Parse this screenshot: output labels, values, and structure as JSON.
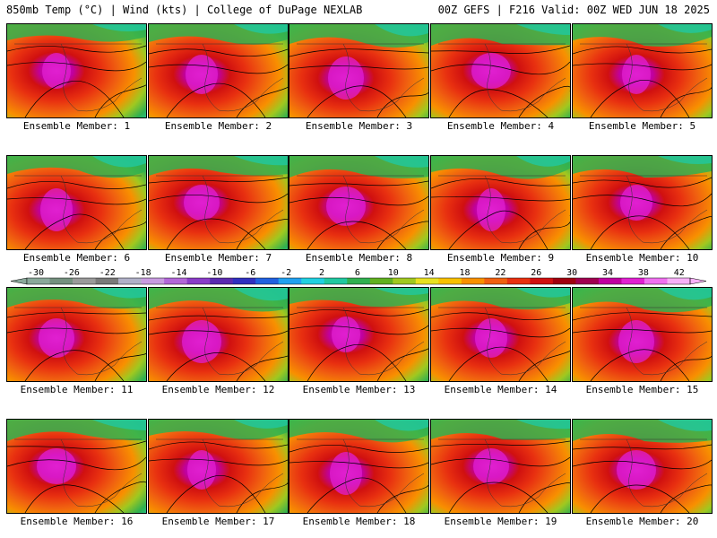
{
  "header": {
    "left": "850mb Temp (°C) | Wind (kts) | College of DuPage NEXLAB",
    "right": "00Z GEFS | F216 Valid: 00Z WED JUN 18 2025"
  },
  "members": [
    {
      "label": "Ensemble Member: 1"
    },
    {
      "label": "Ensemble Member: 2"
    },
    {
      "label": "Ensemble Member: 3"
    },
    {
      "label": "Ensemble Member: 4"
    },
    {
      "label": "Ensemble Member: 5"
    },
    {
      "label": "Ensemble Member: 6"
    },
    {
      "label": "Ensemble Member: 7"
    },
    {
      "label": "Ensemble Member: 8"
    },
    {
      "label": "Ensemble Member: 9"
    },
    {
      "label": "Ensemble Member: 10"
    },
    {
      "label": "Ensemble Member: 11"
    },
    {
      "label": "Ensemble Member: 12"
    },
    {
      "label": "Ensemble Member: 13"
    },
    {
      "label": "Ensemble Member: 14"
    },
    {
      "label": "Ensemble Member: 15"
    },
    {
      "label": "Ensemble Member: 16"
    },
    {
      "label": "Ensemble Member: 17"
    },
    {
      "label": "Ensemble Member: 18"
    },
    {
      "label": "Ensemble Member: 19"
    },
    {
      "label": "Ensemble Member: 20"
    }
  ],
  "colorbar": {
    "ticks": [
      "-30",
      "-26",
      "-22",
      "-18",
      "-14",
      "-10",
      "-6",
      "-2",
      "2",
      "6",
      "10",
      "14",
      "18",
      "22",
      "26",
      "30",
      "34",
      "38",
      "42"
    ],
    "colors": [
      "#8aa89a",
      "#74907f",
      "#9a9a9a",
      "#7a7a7a",
      "#b0b0c8",
      "#c89be0",
      "#b267d8",
      "#8a3cc8",
      "#5a2ab0",
      "#3030c0",
      "#2060e0",
      "#20a0f0",
      "#20d0e0",
      "#20c8a0",
      "#30b050",
      "#60b020",
      "#a0c820",
      "#e8e020",
      "#f8c000",
      "#f89000",
      "#f06010",
      "#e83010",
      "#d01010",
      "#a00010",
      "#a00050",
      "#c000a0",
      "#e020d0",
      "#f070f0",
      "#f8b0f8"
    ]
  }
}
